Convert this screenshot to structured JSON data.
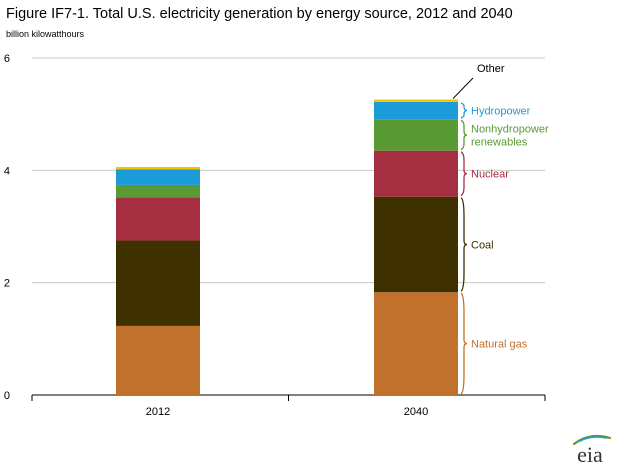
{
  "title": "Figure IF7-1. Total U.S. electricity generation by energy source, 2012 and 2040",
  "units": "billion kilowatthours",
  "logo_text": "eia",
  "chart_data": {
    "type": "bar",
    "stacked": true,
    "categories": [
      "2012",
      "2040"
    ],
    "ylim": [
      0,
      6
    ],
    "yticks": [
      0,
      2,
      4,
      6
    ],
    "grid": true,
    "series": [
      {
        "name": "Natural gas",
        "color": "#C0722C",
        "values": [
          1.23,
          1.83
        ]
      },
      {
        "name": "Coal",
        "color": "#3F3000",
        "values": [
          1.52,
          1.7
        ]
      },
      {
        "name": "Nuclear",
        "color": "#A52F41",
        "values": [
          0.77,
          0.82
        ]
      },
      {
        "name": "Nonhydropower renewables",
        "color": "#5A9A34",
        "values": [
          0.22,
          0.56
        ]
      },
      {
        "name": "Hydropower",
        "color": "#1B9CD9",
        "values": [
          0.28,
          0.31
        ]
      },
      {
        "name": "Other",
        "color": "#F2C500",
        "values": [
          0.04,
          0.04
        ]
      }
    ],
    "annotation_labels": [
      {
        "series": "Other",
        "text": "Other",
        "color": "#000000"
      },
      {
        "series": "Hydropower",
        "text": "Hydropower",
        "color": "#1B9CD9"
      },
      {
        "series": "Nonhydropower renewables",
        "text": [
          "Nonhydropower",
          "renewables"
        ],
        "color": "#5A9A34"
      },
      {
        "series": "Nuclear",
        "text": "Nuclear",
        "color": "#A52F41"
      },
      {
        "series": "Coal",
        "text": "Coal",
        "color": "#3F3000"
      },
      {
        "series": "Natural gas",
        "text": "Natural gas",
        "color": "#C0722C"
      }
    ]
  }
}
